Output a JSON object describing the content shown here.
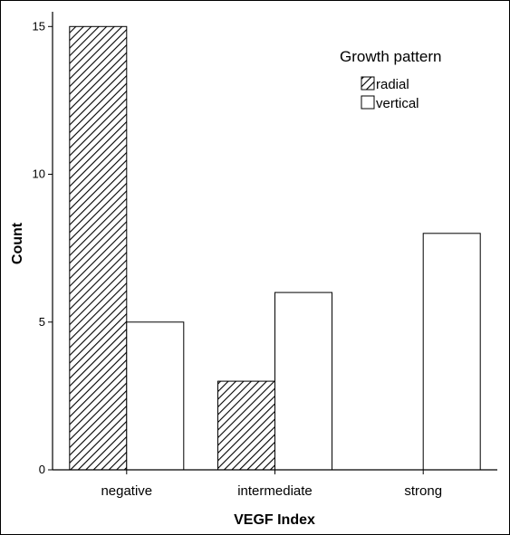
{
  "chart_data": {
    "type": "bar",
    "title": "",
    "xlabel": "VEGF Index",
    "ylabel": "Count",
    "categories": [
      "negative",
      "intermediate",
      "strong"
    ],
    "series": [
      {
        "name": "radial",
        "values": [
          15,
          3,
          0
        ],
        "fill": "hatched",
        "color": "#000000"
      },
      {
        "name": "vertical",
        "values": [
          5,
          6,
          8
        ],
        "fill": "#ffffff",
        "color": "#000000"
      }
    ],
    "ylim": [
      0,
      15.5
    ],
    "yticks": [
      0,
      5,
      10,
      15
    ],
    "ytick_labels": [
      "0",
      "5",
      "10",
      "15"
    ],
    "grid": false,
    "legend": {
      "title": "Growth pattern",
      "placement": "top-right"
    }
  }
}
